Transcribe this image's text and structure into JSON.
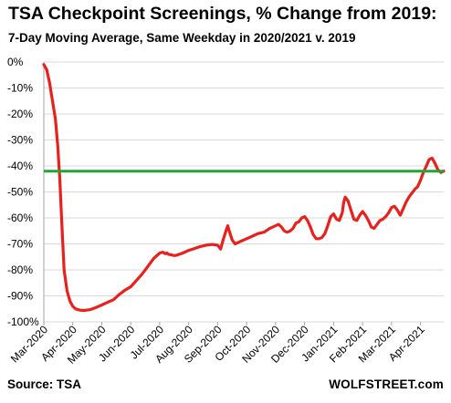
{
  "title": "TSA Checkpoint Screenings, % Change from 2019:",
  "subtitle": "7-Day Moving Average, Same Weekday in 2020/2021 v. 2019",
  "source": "Source: TSA",
  "credit": "WOLFSTREET.com",
  "colors": {
    "series": "#e8211c",
    "reference": "#22a534",
    "grid": "#d9d9d9",
    "axis": "#a6a6a6"
  },
  "chart_data": {
    "type": "line",
    "ylim": [
      -100,
      0
    ],
    "yticks": [
      0,
      -10,
      -20,
      -30,
      -40,
      -50,
      -60,
      -70,
      -80,
      -90,
      -100
    ],
    "ytick_labels": [
      "0%",
      "-10%",
      "-20%",
      "-30%",
      "-40%",
      "-50%",
      "-60%",
      "-70%",
      "-80%",
      "-90%",
      "-100%"
    ],
    "xlim": [
      0,
      13.8
    ],
    "xticks": [
      0,
      1,
      2,
      3,
      4,
      5,
      6,
      7,
      8,
      9,
      10,
      11,
      12,
      13
    ],
    "xtick_labels": [
      "Mar-2020",
      "Apr-2020",
      "May-2020",
      "Jun-2020",
      "Jul-2020",
      "Aug-2020",
      "Sep-2020",
      "Oct-2020",
      "Nov-2020",
      "Dec-2020",
      "Jan-2021",
      "Feb-2021",
      "Mar-2021",
      "Apr-2021"
    ],
    "grid": true,
    "reference_line": {
      "y": -42
    },
    "series": [
      {
        "x": [
          0.0,
          0.1,
          0.2,
          0.3,
          0.4,
          0.48,
          0.55,
          0.62,
          0.7,
          0.8,
          0.9,
          1.0,
          1.1,
          1.25,
          1.4,
          1.6,
          1.8,
          2.0,
          2.2,
          2.4,
          2.6,
          2.8,
          3.0,
          3.2,
          3.4,
          3.6,
          3.8,
          4.0,
          4.1,
          4.2,
          4.25,
          4.3,
          4.4,
          4.5,
          4.6,
          4.8,
          5.0,
          5.2,
          5.4,
          5.6,
          5.8,
          6.0,
          6.1,
          6.2,
          6.3,
          6.35,
          6.4,
          6.5,
          6.6,
          6.7,
          6.8,
          6.9,
          7.0,
          7.2,
          7.4,
          7.6,
          7.8,
          8.0,
          8.1,
          8.2,
          8.3,
          8.4,
          8.5,
          8.6,
          8.7,
          8.8,
          8.9,
          9.0,
          9.1,
          9.2,
          9.3,
          9.4,
          9.5,
          9.6,
          9.7,
          9.8,
          9.9,
          10.0,
          10.1,
          10.2,
          10.3,
          10.35,
          10.4,
          10.5,
          10.6,
          10.7,
          10.8,
          10.9,
          11.0,
          11.1,
          11.2,
          11.3,
          11.4,
          11.5,
          11.6,
          11.7,
          11.8,
          11.9,
          12.0,
          12.1,
          12.2,
          12.3,
          12.4,
          12.5,
          12.6,
          12.7,
          12.8,
          12.9,
          13.0,
          13.1,
          13.2,
          13.3,
          13.4,
          13.5,
          13.6,
          13.7,
          13.8
        ],
        "y": [
          -1,
          -3,
          -8,
          -15,
          -22,
          -32,
          -45,
          -62,
          -80,
          -88,
          -92,
          -94,
          -95,
          -95.5,
          -95.6,
          -95.3,
          -94.5,
          -93.5,
          -92.5,
          -91.5,
          -89.5,
          -87.8,
          -86.5,
          -84,
          -81.5,
          -78.5,
          -75.5,
          -73.5,
          -73.2,
          -73.8,
          -73.5,
          -74,
          -74.2,
          -74.5,
          -74.3,
          -73.5,
          -72.5,
          -71.8,
          -71,
          -70.5,
          -70.2,
          -70.5,
          -72,
          -68,
          -64.5,
          -63,
          -65,
          -68.5,
          -70,
          -69.5,
          -69,
          -68.5,
          -68,
          -67,
          -66,
          -65.5,
          -64,
          -63,
          -62.5,
          -63.5,
          -65,
          -65.5,
          -65,
          -64,
          -62,
          -61.5,
          -60,
          -59.5,
          -61,
          -63.5,
          -66.5,
          -68,
          -68,
          -67.5,
          -66,
          -63,
          -59.5,
          -58.5,
          -60.5,
          -61,
          -58,
          -54,
          -52,
          -53.5,
          -57,
          -60.5,
          -61,
          -59,
          -57.5,
          -59,
          -61,
          -63.5,
          -64,
          -62.5,
          -61,
          -60.5,
          -59.5,
          -58,
          -56,
          -55.5,
          -57,
          -59,
          -56.5,
          -54,
          -52,
          -50.5,
          -49,
          -48,
          -45.5,
          -42.5,
          -40,
          -37.5,
          -37,
          -39,
          -41.5,
          -42.5,
          -42
        ]
      }
    ]
  }
}
